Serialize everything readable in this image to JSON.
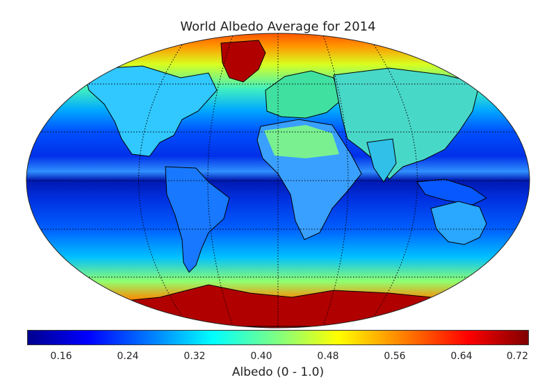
{
  "title": "World Albedo Average for 2014",
  "colorbar": {
    "label": "Albedo (0 - 1.0)",
    "min": 0.12,
    "max": 0.72,
    "ticks": [
      "0.16",
      "0.24",
      "0.32",
      "0.40",
      "0.48",
      "0.56",
      "0.64",
      "0.72"
    ],
    "tick_values": [
      0.16,
      0.24,
      0.32,
      0.4,
      0.48,
      0.56,
      0.64,
      0.72
    ],
    "colormap": "jet"
  },
  "map": {
    "projection": "robinson-like ellipse",
    "graticule": "dotted",
    "colors": {
      "ocean_low": "#00008b",
      "ocean_mid": "#0055ff",
      "midlat": "#00d6ff",
      "high_lat": "#ff8c00",
      "ice": "#b00000"
    }
  }
}
